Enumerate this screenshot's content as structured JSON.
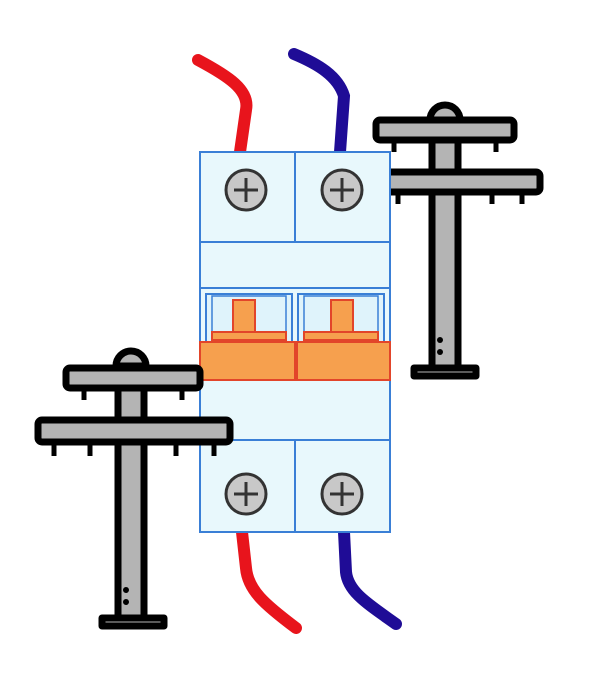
{
  "app_icon": {
    "name": "circuit-breaker-app-icon",
    "colors": {
      "background": "#ffffff",
      "wire_phase": "#e8141c",
      "wire_neutral": "#1f0c96",
      "breaker_body": "#e8f8fc",
      "breaker_outline": "#3a7fd6",
      "lever_fill": "#f6a04e",
      "lever_outline": "#e2452a",
      "screw_fill": "#c8c8c8",
      "pole_fill": "#b4b4b4",
      "pole_outline": "#000000"
    },
    "icons": [
      "utility-pole-icon",
      "utility-pole-icon",
      "double-pole-circuit-breaker-icon",
      "terminal-screw-icon",
      "terminal-screw-icon",
      "terminal-screw-icon",
      "terminal-screw-icon",
      "red-wire-icon",
      "blue-wire-icon"
    ]
  }
}
